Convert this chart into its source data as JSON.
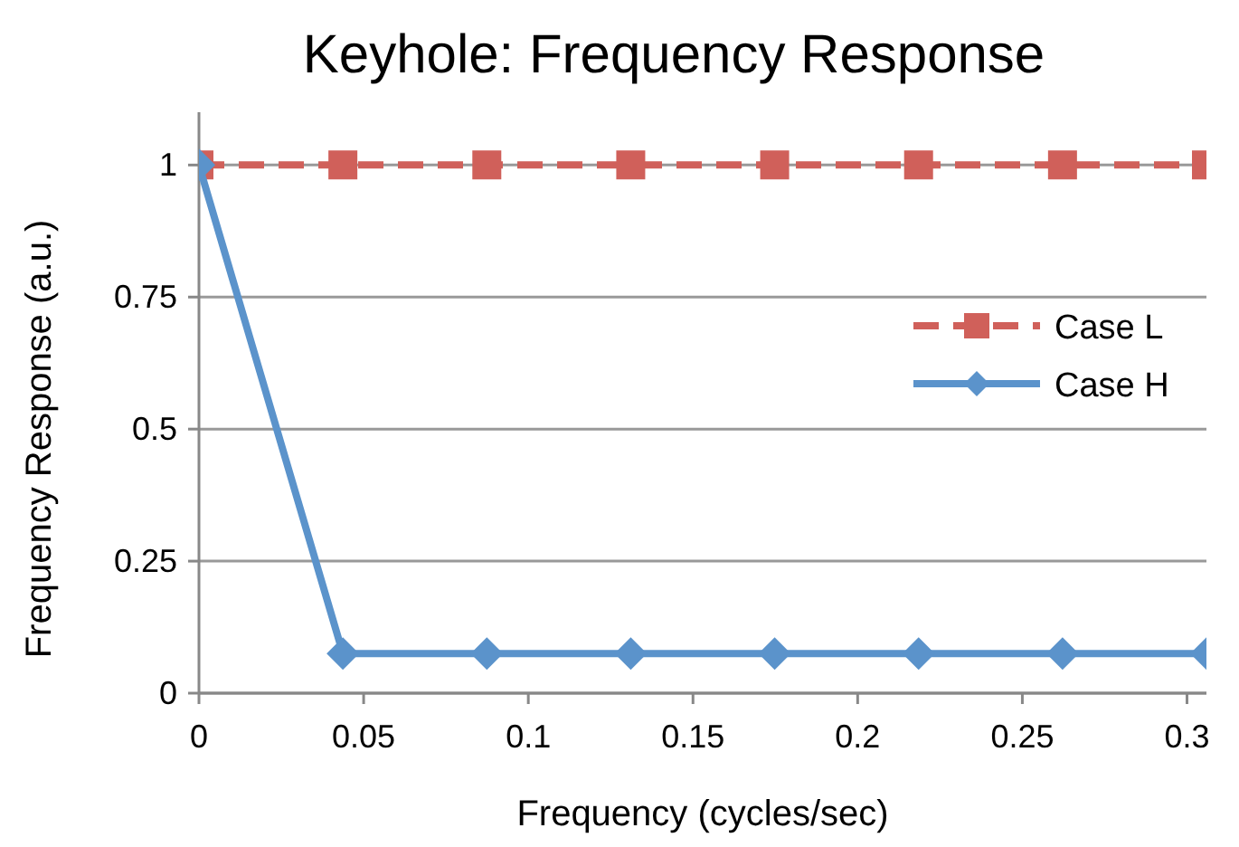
{
  "chart_data": {
    "type": "line",
    "title": "Keyhole: Frequency Response",
    "xlabel": "Frequency (cycles/sec)",
    "ylabel": "Frequency Response (a.u.)",
    "x": [
      0,
      0.0437,
      0.0874,
      0.1311,
      0.1748,
      0.2185,
      0.2622,
      0.3059
    ],
    "series": [
      {
        "name": "Case L",
        "color": "#d0605a",
        "values": [
          1,
          1,
          1,
          1,
          1,
          1,
          1,
          1
        ],
        "marker": "square",
        "line_style": "dashed"
      },
      {
        "name": "Case H",
        "color": "#5b93cb",
        "values": [
          1,
          0.075,
          0.075,
          0.075,
          0.075,
          0.075,
          0.075,
          0.075
        ],
        "marker": "diamond",
        "line_style": "solid"
      }
    ],
    "xlim": [
      0,
      0.3059
    ],
    "xticks": [
      0,
      0.05,
      0.1,
      0.15,
      0.2,
      0.25,
      0.3
    ],
    "ylim": [
      0,
      1.1
    ],
    "yticks": [
      0,
      0.25,
      0.5,
      0.75,
      1
    ],
    "grid": "y",
    "legend": "right"
  }
}
